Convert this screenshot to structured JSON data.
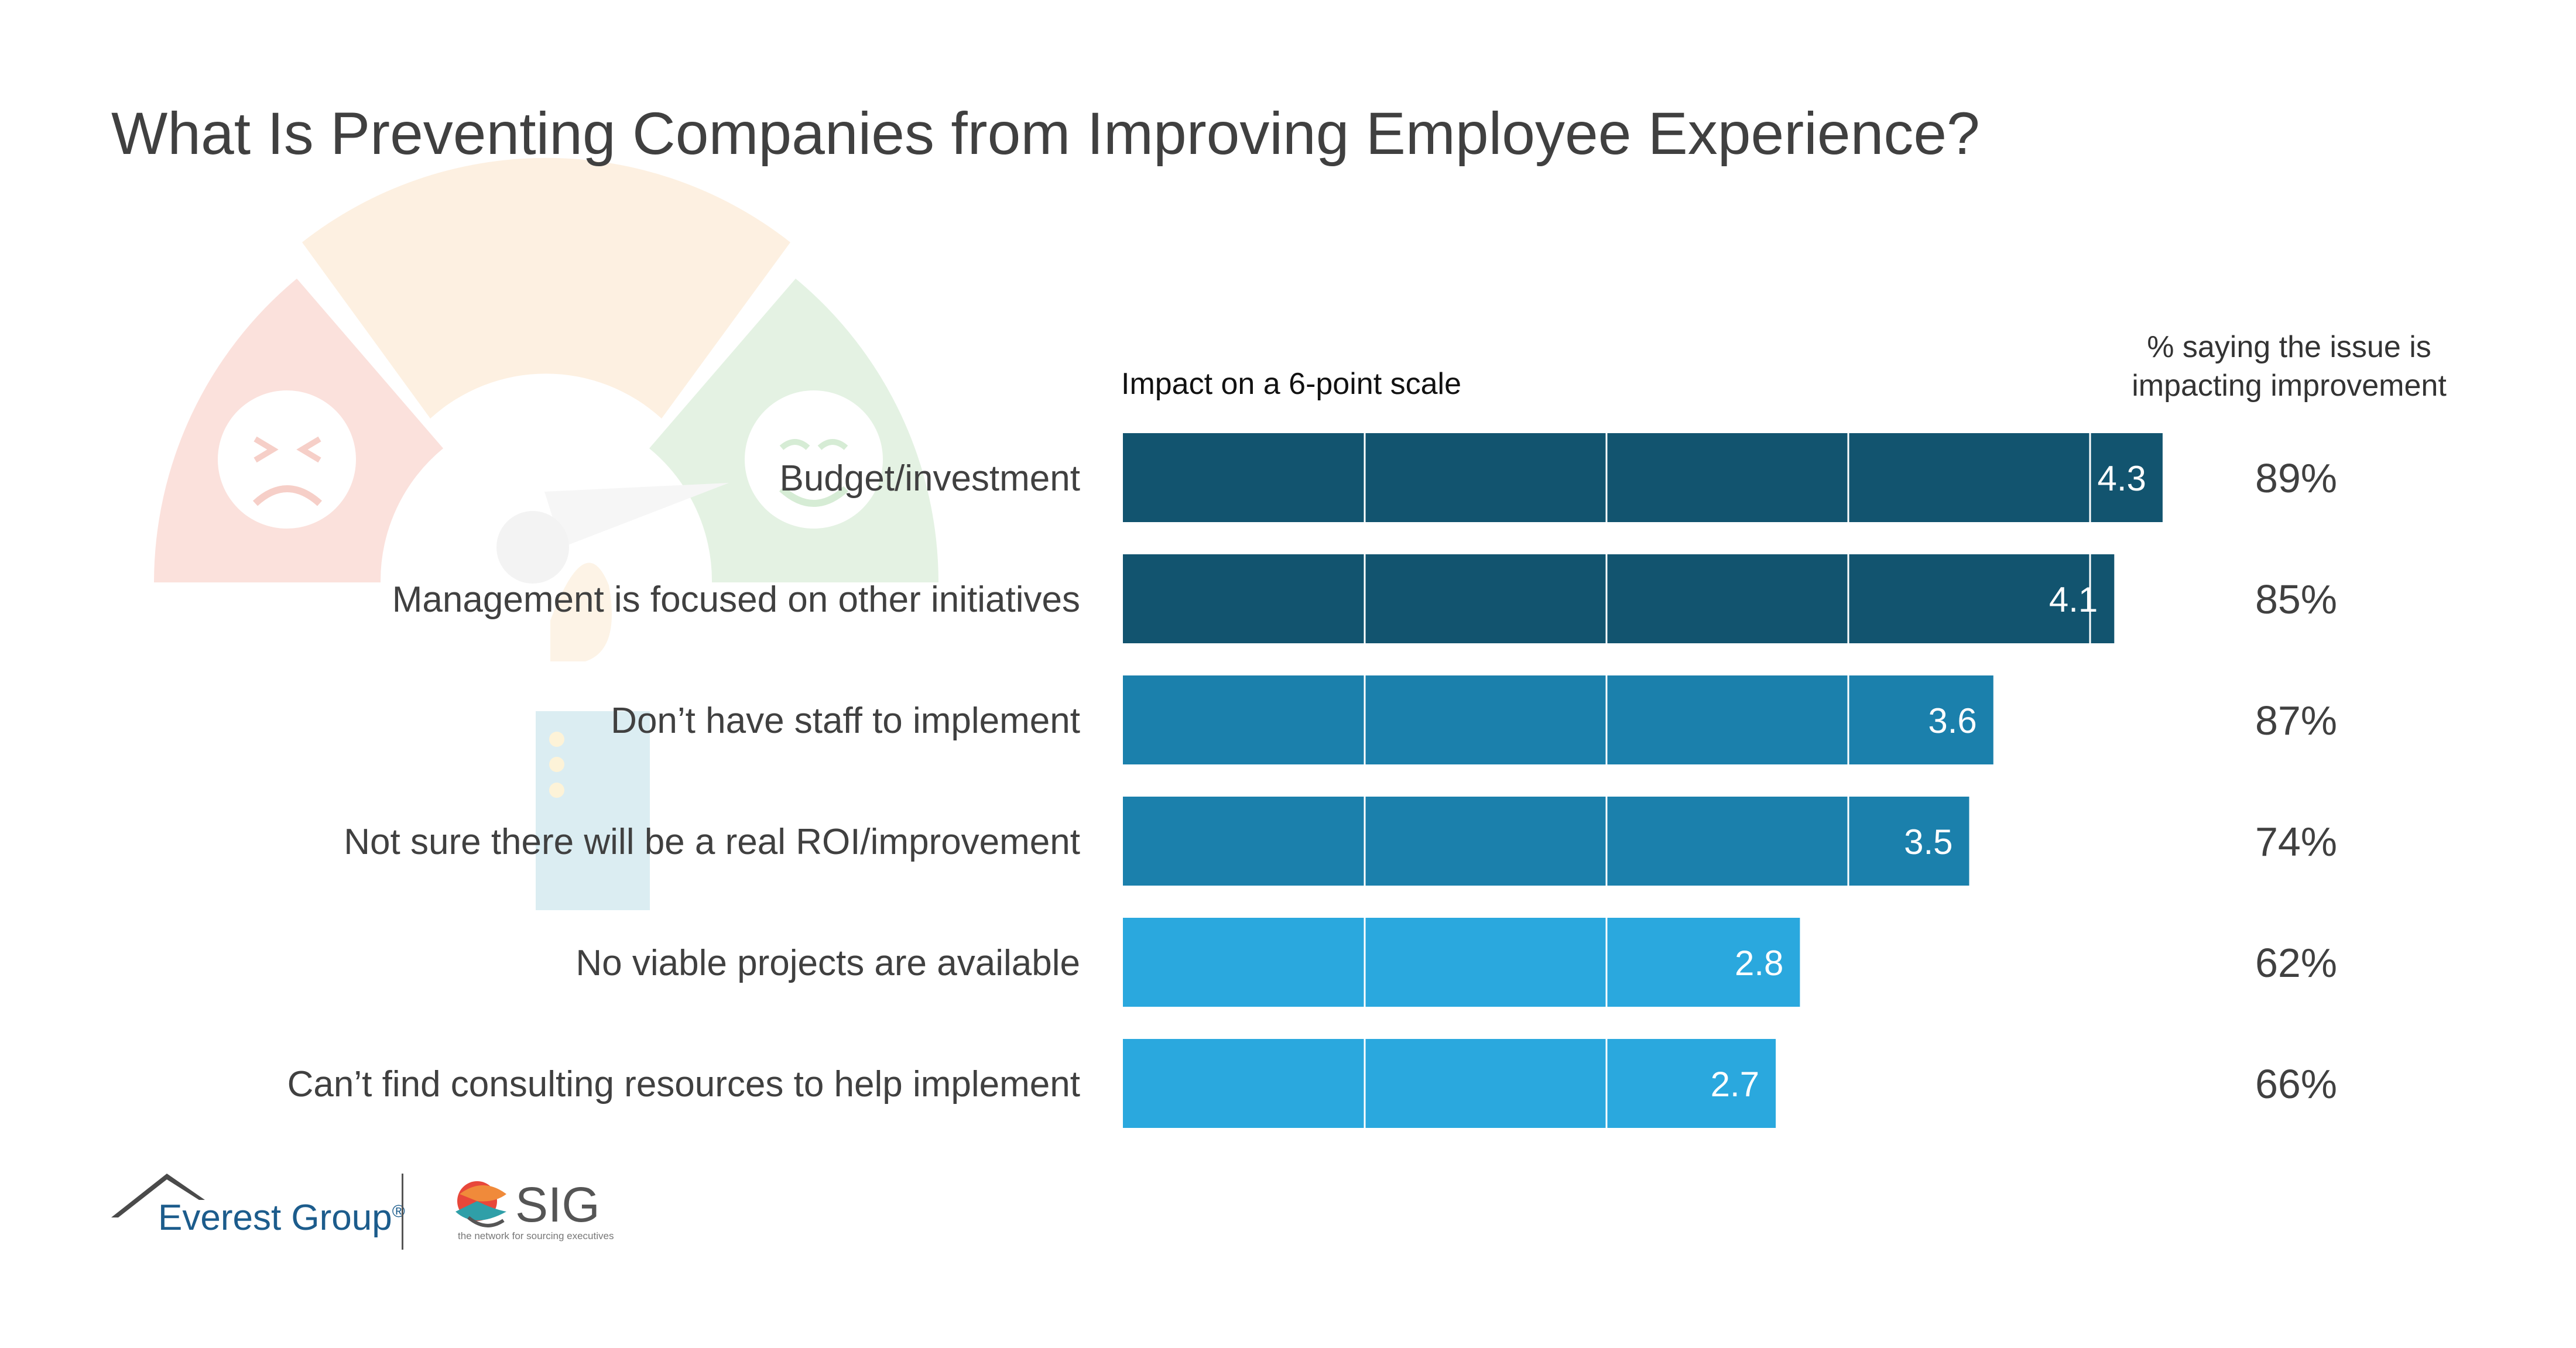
{
  "title": "What Is Preventing Companies from Improving Employee Experience?",
  "scale_title": "Impact on a 6-point scale",
  "pct_header": [
    "% saying the issue is",
    "impacting improvement"
  ],
  "colors": {
    "dark": "#12546f",
    "mid": "#1b80ac",
    "light": "#2aa8de",
    "text": "#404040"
  },
  "chart_data": {
    "type": "bar",
    "orientation": "horizontal",
    "categories": [
      "Budget/investment",
      "Management is focused on other initiatives",
      "Don’t have staff to implement",
      "Not sure there will be a real ROI/improvement",
      "No viable projects are available",
      "Can’t find consulting resources to help implement"
    ],
    "values": [
      4.3,
      4.1,
      3.6,
      3.5,
      2.8,
      2.7
    ],
    "value_labels": [
      "4.3",
      "4.1",
      "3.6",
      "3.5",
      "2.8",
      "2.7"
    ],
    "percent_labels": [
      "89%",
      "85%",
      "87%",
      "74%",
      "62%",
      "66%"
    ],
    "xlim": [
      0,
      6
    ],
    "grid": true,
    "legend": "none"
  },
  "logos": {
    "everest": "Everest Group",
    "everest_mark": "®",
    "sig": "SIG",
    "sig_tagline": "the network for sourcing executives"
  }
}
